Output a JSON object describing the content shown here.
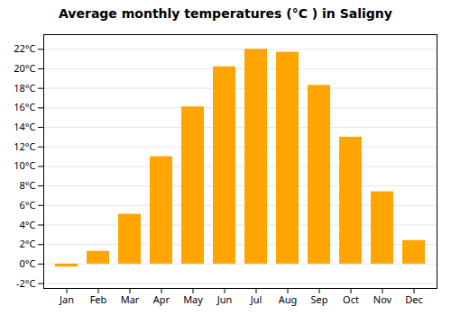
{
  "chart_data": {
    "type": "bar",
    "title": "Average monthly temperatures (°C ) in Saligny",
    "categories": [
      "Jan",
      "Feb",
      "Mar",
      "Apr",
      "May",
      "Jun",
      "Jul",
      "Aug",
      "Sep",
      "Oct",
      "Nov",
      "Dec"
    ],
    "values": [
      -0.3,
      1.3,
      5.1,
      11.0,
      16.1,
      20.2,
      22.0,
      21.7,
      18.3,
      13.0,
      7.4,
      2.4
    ],
    "color": "#FFA500",
    "ylim": [
      -2.5,
      23.5
    ],
    "yticks": [
      {
        "value": -2,
        "label": "-2°C"
      },
      {
        "value": 0,
        "label": "0°C"
      },
      {
        "value": 2,
        "label": "2°C"
      },
      {
        "value": 4,
        "label": "4°C"
      },
      {
        "value": 6,
        "label": "6°C"
      },
      {
        "value": 8,
        "label": "8°C"
      },
      {
        "value": 10,
        "label": "10°C"
      },
      {
        "value": 12,
        "label": "12°C"
      },
      {
        "value": 14,
        "label": "14°C"
      },
      {
        "value": 16,
        "label": "16°C"
      },
      {
        "value": 18,
        "label": "18°C"
      },
      {
        "value": 20,
        "label": "20°C"
      },
      {
        "value": 22,
        "label": "22°C"
      }
    ],
    "grid": true
  }
}
